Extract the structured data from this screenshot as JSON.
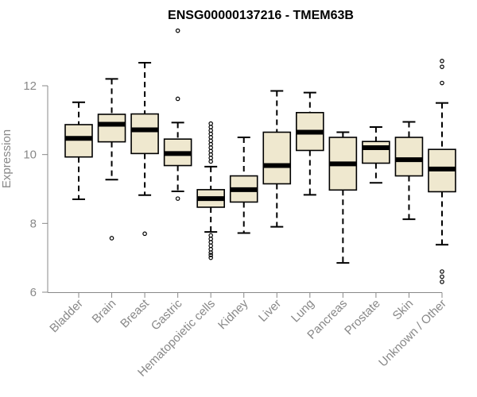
{
  "chart_data": {
    "type": "boxplot",
    "title": "ENSG00000137216 - TMEM63B",
    "xlabel": "",
    "ylabel": "Expression",
    "ylim": [
      6,
      13.8
    ],
    "yticks": [
      6,
      8,
      10,
      12
    ],
    "box_fill": "#efe8cf",
    "categories": [
      "Bladder",
      "Brain",
      "Breast",
      "Gastric",
      "Hematopoietic cells",
      "Kidney",
      "Liver",
      "Lung",
      "Pancreas",
      "Prostate",
      "Skin",
      "Unknown / Other"
    ],
    "boxes": [
      {
        "min": 8.7,
        "q1": 9.93,
        "median": 10.47,
        "q3": 10.87,
        "max": 11.52,
        "outliers": []
      },
      {
        "min": 9.27,
        "q1": 10.37,
        "median": 10.88,
        "q3": 11.17,
        "max": 12.2,
        "outliers": [
          7.57
        ]
      },
      {
        "min": 8.82,
        "q1": 10.03,
        "median": 10.72,
        "q3": 11.18,
        "max": 12.67,
        "outliers": [
          7.7
        ]
      },
      {
        "min": 8.93,
        "q1": 9.68,
        "median": 10.03,
        "q3": 10.45,
        "max": 10.93,
        "outliers": [
          13.6,
          11.62,
          8.72
        ]
      },
      {
        "min": 7.75,
        "q1": 8.47,
        "median": 8.72,
        "q3": 8.98,
        "max": 9.65,
        "outliers": [
          10.9,
          10.8,
          10.7,
          10.6,
          10.5,
          10.4,
          10.3,
          10.2,
          10.1,
          10.0,
          9.9,
          9.8,
          7.65,
          7.55,
          7.45,
          7.35,
          7.25,
          7.15,
          7.08,
          7.0
        ]
      },
      {
        "min": 7.72,
        "q1": 8.62,
        "median": 8.98,
        "q3": 9.38,
        "max": 10.5,
        "outliers": []
      },
      {
        "min": 7.9,
        "q1": 9.15,
        "median": 9.68,
        "q3": 10.65,
        "max": 11.85,
        "outliers": []
      },
      {
        "min": 8.83,
        "q1": 10.12,
        "median": 10.65,
        "q3": 11.22,
        "max": 11.8,
        "outliers": []
      },
      {
        "min": 6.85,
        "q1": 8.97,
        "median": 9.73,
        "q3": 10.5,
        "max": 10.65,
        "outliers": []
      },
      {
        "min": 9.18,
        "q1": 9.75,
        "median": 10.2,
        "q3": 10.38,
        "max": 10.8,
        "outliers": []
      },
      {
        "min": 8.12,
        "q1": 9.38,
        "median": 9.85,
        "q3": 10.5,
        "max": 10.95,
        "outliers": []
      },
      {
        "min": 7.38,
        "q1": 8.92,
        "median": 9.58,
        "q3": 10.15,
        "max": 11.5,
        "outliers": [
          12.72,
          12.55,
          12.08,
          6.6,
          6.45,
          6.3
        ]
      }
    ]
  }
}
